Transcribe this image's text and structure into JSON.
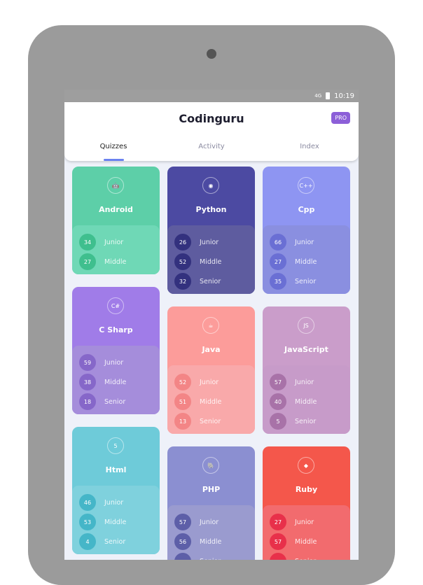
{
  "status": {
    "time": "10:19",
    "network": "4G"
  },
  "header": {
    "title": "Codinguru",
    "pro": "PRO"
  },
  "tabs": [
    {
      "label": "Quizzes"
    },
    {
      "label": "Activity"
    },
    {
      "label": "Index"
    }
  ],
  "cards": [
    {
      "name": "Android",
      "icon": "android-icon",
      "glyph": "🤖",
      "top": "#5dcfa8",
      "bottom": "#6fd8b6",
      "circle": "#3fbf8e",
      "levels": [
        {
          "n": "34",
          "l": "Junior"
        },
        {
          "n": "27",
          "l": "Middle"
        }
      ]
    },
    {
      "name": "Python",
      "icon": "python-icon",
      "glyph": "◉",
      "top": "#4c4aa2",
      "bottom": "#5e5c9f",
      "circle": "#33317e",
      "levels": [
        {
          "n": "26",
          "l": "Junior"
        },
        {
          "n": "52",
          "l": "Middle"
        },
        {
          "n": "32",
          "l": "Senior"
        }
      ]
    },
    {
      "name": "Cpp",
      "icon": "cpp-icon",
      "glyph": "C++",
      "top": "#8e95f2",
      "bottom": "#8a8fe0",
      "circle": "#6a6fd4",
      "levels": [
        {
          "n": "66",
          "l": "Junior"
        },
        {
          "n": "27",
          "l": "Middle"
        },
        {
          "n": "35",
          "l": "Senior"
        }
      ]
    },
    {
      "name": "C Sharp",
      "icon": "csharp-icon",
      "glyph": "C#",
      "top": "#a07ce8",
      "bottom": "#a58ddb",
      "circle": "#8667c9",
      "levels": [
        {
          "n": "59",
          "l": "Junior"
        },
        {
          "n": "38",
          "l": "Middle"
        },
        {
          "n": "18",
          "l": "Senior"
        }
      ]
    },
    {
      "name": "Java",
      "icon": "java-icon",
      "glyph": "☕",
      "top": "#fc9c9a",
      "bottom": "#f9a9aa",
      "circle": "#f38586",
      "levels": [
        {
          "n": "52",
          "l": "Junior"
        },
        {
          "n": "51",
          "l": "Middle"
        },
        {
          "n": "13",
          "l": "Senior"
        }
      ]
    },
    {
      "name": "JavaScript",
      "icon": "javascript-icon",
      "glyph": "JS",
      "top": "#ca9dca",
      "bottom": "#c79bc9",
      "circle": "#a872a8",
      "levels": [
        {
          "n": "57",
          "l": "Junior"
        },
        {
          "n": "40",
          "l": "Middle"
        },
        {
          "n": "5",
          "l": "Senior"
        }
      ]
    },
    {
      "name": "Html",
      "icon": "html5-icon",
      "glyph": "5",
      "top": "#6ecbd9",
      "bottom": "#7fd1dd",
      "circle": "#45b6c8",
      "levels": [
        {
          "n": "46",
          "l": "Junior"
        },
        {
          "n": "53",
          "l": "Middle"
        },
        {
          "n": "4",
          "l": "Senior"
        }
      ]
    },
    {
      "name": "PHP",
      "icon": "php-icon",
      "glyph": "🐘",
      "top": "#8b8fd1",
      "bottom": "#9a9bcf",
      "circle": "#5d5fa8",
      "levels": [
        {
          "n": "57",
          "l": "Junior"
        },
        {
          "n": "56",
          "l": "Middle"
        },
        {
          "n": "",
          "l": "Senior"
        }
      ]
    },
    {
      "name": "Ruby",
      "icon": "ruby-icon",
      "glyph": "◆",
      "top": "#f4574b",
      "bottom": "#f26b6e",
      "circle": "#e8304a",
      "levels": [
        {
          "n": "27",
          "l": "Junior"
        },
        {
          "n": "57",
          "l": "Middle"
        },
        {
          "n": "",
          "l": "Senior"
        }
      ]
    }
  ]
}
